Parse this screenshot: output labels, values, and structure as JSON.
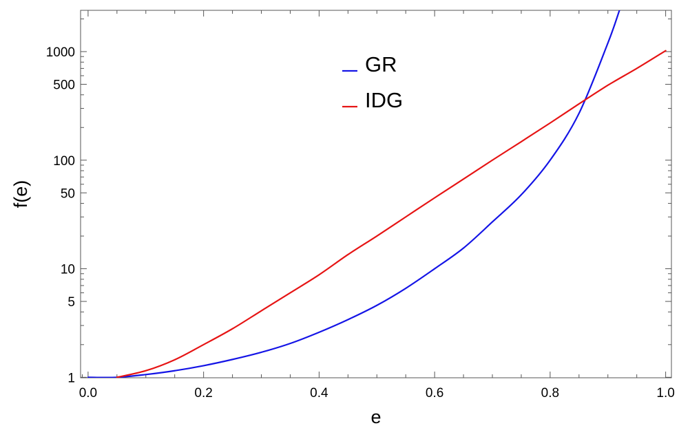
{
  "chart_data": {
    "type": "line",
    "title": "",
    "xlabel": "e",
    "ylabel": "f(e)",
    "xlim": [
      -0.013,
      1.01
    ],
    "ylim": [
      0.99,
      2400
    ],
    "yscale": "log",
    "grid": false,
    "legend_position": "top-center",
    "x_ticks": [
      {
        "value": 0.0,
        "label": "0.0"
      },
      {
        "value": 0.2,
        "label": "0.2"
      },
      {
        "value": 0.4,
        "label": "0.4"
      },
      {
        "value": 0.6,
        "label": "0.6"
      },
      {
        "value": 0.8,
        "label": "0.8"
      },
      {
        "value": 1.0,
        "label": "1.0"
      }
    ],
    "y_ticks": [
      {
        "value": 1,
        "label": "1"
      },
      {
        "value": 5,
        "label": "5"
      },
      {
        "value": 10,
        "label": "10"
      },
      {
        "value": 50,
        "label": "50"
      },
      {
        "value": 100,
        "label": "100"
      },
      {
        "value": 500,
        "label": "500"
      },
      {
        "value": 1000,
        "label": "1000"
      }
    ],
    "series": [
      {
        "name": "GR",
        "color": "#1414e6",
        "x": [
          0.0,
          0.05,
          0.1,
          0.15,
          0.2,
          0.25,
          0.3,
          0.35,
          0.4,
          0.45,
          0.5,
          0.55,
          0.6,
          0.65,
          0.7,
          0.75,
          0.8,
          0.85,
          0.9,
          0.92
        ],
        "y": [
          1.0,
          1.0,
          1.06,
          1.15,
          1.28,
          1.46,
          1.7,
          2.05,
          2.6,
          3.4,
          4.6,
          6.6,
          10,
          15.5,
          27,
          48,
          100,
          270,
          1200,
          2400
        ]
      },
      {
        "name": "IDG",
        "color": "#e61414",
        "x": [
          0.05,
          0.1,
          0.15,
          0.2,
          0.25,
          0.3,
          0.35,
          0.4,
          0.45,
          0.5,
          0.55,
          0.6,
          0.65,
          0.7,
          0.75,
          0.8,
          0.85,
          0.9,
          0.95,
          1.0
        ],
        "y": [
          1.0,
          1.15,
          1.45,
          2.0,
          2.8,
          4.1,
          6.0,
          8.8,
          13.5,
          20,
          30,
          45,
          67,
          100,
          148,
          220,
          330,
          490,
          700,
          1020
        ]
      }
    ]
  }
}
